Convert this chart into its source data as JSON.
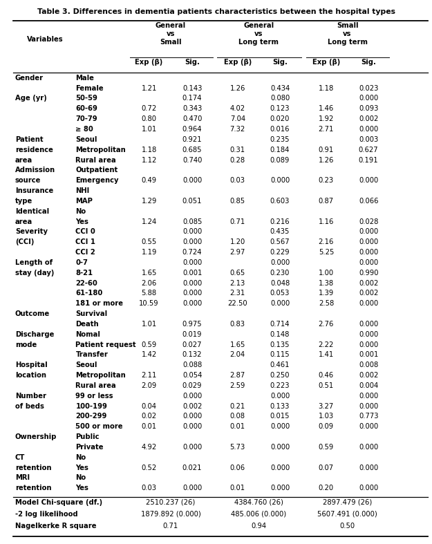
{
  "title": "Table 3. Differences in dementia patients characteristics between the hospital types",
  "rows": [
    [
      "Gender",
      "Male",
      "",
      "",
      "",
      "",
      "",
      ""
    ],
    [
      "",
      "Female",
      "1.21",
      "0.143",
      "1.26",
      "0.434",
      "1.18",
      "0.023"
    ],
    [
      "Age (yr)",
      "50-59",
      "",
      "0.174",
      "",
      "0.080",
      "",
      "0.000"
    ],
    [
      "",
      "60-69",
      "0.72",
      "0.343",
      "4.02",
      "0.123",
      "1.46",
      "0.093"
    ],
    [
      "",
      "70-79",
      "0.80",
      "0.470",
      "7.04",
      "0.020",
      "1.92",
      "0.002"
    ],
    [
      "",
      "≥ 80",
      "1.01",
      "0.964",
      "7.32",
      "0.016",
      "2.71",
      "0.000"
    ],
    [
      "Patient",
      "Seoul",
      "",
      "0.921",
      "",
      "0.235",
      "",
      "0.003"
    ],
    [
      "residence",
      "Metropolitan",
      "1.18",
      "0.685",
      "0.31",
      "0.184",
      "0.91",
      "0.627"
    ],
    [
      "area",
      "Rural area",
      "1.12",
      "0.740",
      "0.28",
      "0.089",
      "1.26",
      "0.191"
    ],
    [
      "Admission",
      "Outpatient",
      "",
      "",
      "",
      "",
      "",
      ""
    ],
    [
      "source",
      "Emergency",
      "0.49",
      "0.000",
      "0.03",
      "0.000",
      "0.23",
      "0.000"
    ],
    [
      "Insurance",
      "NHI",
      "",
      "",
      "",
      "",
      "",
      ""
    ],
    [
      "type",
      "MAP",
      "1.29",
      "0.051",
      "0.85",
      "0.603",
      "0.87",
      "0.066"
    ],
    [
      "Identical",
      "No",
      "",
      "",
      "",
      "",
      "",
      ""
    ],
    [
      "area",
      "Yes",
      "1.24",
      "0.085",
      "0.71",
      "0.216",
      "1.16",
      "0.028"
    ],
    [
      "Severity",
      "CCI 0",
      "",
      "0.000",
      "",
      "0.435",
      "",
      "0.000"
    ],
    [
      "(CCI)",
      "CCI 1",
      "0.55",
      "0.000",
      "1.20",
      "0.567",
      "2.16",
      "0.000"
    ],
    [
      "",
      "CCI 2",
      "1.19",
      "0.724",
      "2.97",
      "0.229",
      "5.25",
      "0.000"
    ],
    [
      "Length of",
      "0-7",
      "",
      "0.000",
      "",
      "0.000",
      "",
      "0.000"
    ],
    [
      "stay (day)",
      "8-21",
      "1.65",
      "0.001",
      "0.65",
      "0.230",
      "1.00",
      "0.990"
    ],
    [
      "",
      "22-60",
      "2.06",
      "0.000",
      "2.13",
      "0.048",
      "1.38",
      "0.002"
    ],
    [
      "",
      "61-180",
      "5.88",
      "0.000",
      "2.31",
      "0.053",
      "1.39",
      "0.002"
    ],
    [
      "",
      "181 or more",
      "10.59",
      "0.000",
      "22.50",
      "0.000",
      "2.58",
      "0.000"
    ],
    [
      "Outcome",
      "Survival",
      "",
      "",
      "",
      "",
      "",
      ""
    ],
    [
      "",
      "Death",
      "1.01",
      "0.975",
      "0.83",
      "0.714",
      "2.76",
      "0.000"
    ],
    [
      "Discharge",
      "Nomal",
      "",
      "0.019",
      "",
      "0.148",
      "",
      "0.000"
    ],
    [
      "mode",
      "Patient request",
      "0.59",
      "0.027",
      "1.65",
      "0.135",
      "2.22",
      "0.000"
    ],
    [
      "",
      "Transfer",
      "1.42",
      "0.132",
      "2.04",
      "0.115",
      "1.41",
      "0.001"
    ],
    [
      "Hospital",
      "Seoul",
      "",
      "0.088",
      "",
      "0.461",
      "",
      "0.008"
    ],
    [
      "location",
      "Metropolitan",
      "2.11",
      "0.054",
      "2.87",
      "0.250",
      "0.46",
      "0.002"
    ],
    [
      "",
      "Rural area",
      "2.09",
      "0.029",
      "2.59",
      "0.223",
      "0.51",
      "0.004"
    ],
    [
      "Number",
      "99 or less",
      "",
      "0.000",
      "",
      "0.000",
      "",
      "0.000"
    ],
    [
      "of beds",
      "100-199",
      "0.04",
      "0.002",
      "0.21",
      "0.133",
      "3.27",
      "0.000"
    ],
    [
      "",
      "200-299",
      "0.02",
      "0.000",
      "0.08",
      "0.015",
      "1.03",
      "0.773"
    ],
    [
      "",
      "500 or more",
      "0.01",
      "0.000",
      "0.01",
      "0.000",
      "0.09",
      "0.000"
    ],
    [
      "Ownership",
      "Public",
      "",
      "",
      "",
      "",
      "",
      ""
    ],
    [
      "",
      "Private",
      "4.92",
      "0.000",
      "5.73",
      "0.000",
      "0.59",
      "0.000"
    ],
    [
      "CT",
      "No",
      "",
      "",
      "",
      "",
      "",
      ""
    ],
    [
      "retention",
      "Yes",
      "0.52",
      "0.021",
      "0.06",
      "0.000",
      "0.07",
      "0.000"
    ],
    [
      "MRI",
      "No",
      "",
      "",
      "",
      "",
      "",
      ""
    ],
    [
      "retention",
      "Yes",
      "0.03",
      "0.000",
      "0.01",
      "0.000",
      "0.20",
      "0.000"
    ]
  ],
  "footer_rows": [
    [
      "Model Chi-square (df.)",
      "2510.237 (26)",
      "4384.760 (26)",
      "2897.479 (26)"
    ],
    [
      "-2 log likelihood",
      "1879.892 (0.000)",
      "485.006 (0.000)",
      "5607.491 (0.000)"
    ],
    [
      "Nagelkerke R square",
      "0.71",
      "0.94",
      "0.50"
    ]
  ],
  "group_labels": [
    "General\nvs\nSmall",
    "General\nvs\nLong term",
    "Small\nvs\nLong term"
  ],
  "subheader_labels": [
    "Exp (β)",
    "Sig.",
    "Exp (β)",
    "Sig.",
    "Exp (β)",
    "Sig."
  ]
}
